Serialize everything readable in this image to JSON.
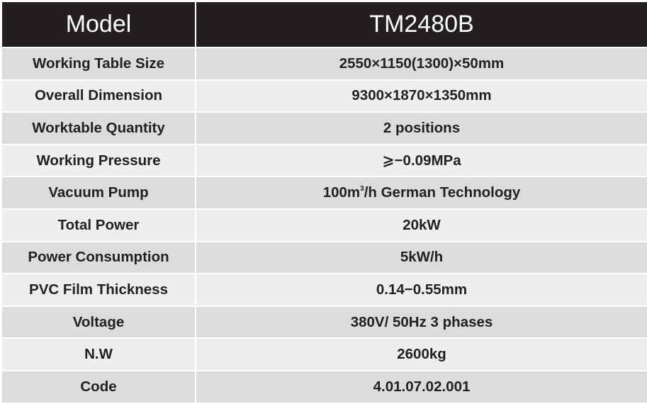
{
  "header": {
    "label": "Model",
    "value": "TM2480B"
  },
  "rows": [
    {
      "label": "Working Table Size",
      "value": "2550×1150(1300)×50mm"
    },
    {
      "label": "Overall Dimension",
      "value": "9300×1870×1350mm"
    },
    {
      "label": "Worktable Quantity",
      "value": "2 positions"
    },
    {
      "label": "Working Pressure",
      "value": "⩾−0.09MPa"
    },
    {
      "label": "Vacuum Pump",
      "value_pre": "100m",
      "value_sup": "3",
      "value_post": "/h German Technology"
    },
    {
      "label": "Total Power",
      "value": "20kW"
    },
    {
      "label": "Power Consumption",
      "value": "5kW/h"
    },
    {
      "label": "PVC Film Thickness",
      "value": "0.14−0.55mm"
    },
    {
      "label": "Voltage",
      "value": "380V/ 50Hz 3 phases"
    },
    {
      "label": "N.W",
      "value": "2600kg"
    },
    {
      "label": "Code",
      "value": "4.01.07.02.001"
    }
  ]
}
